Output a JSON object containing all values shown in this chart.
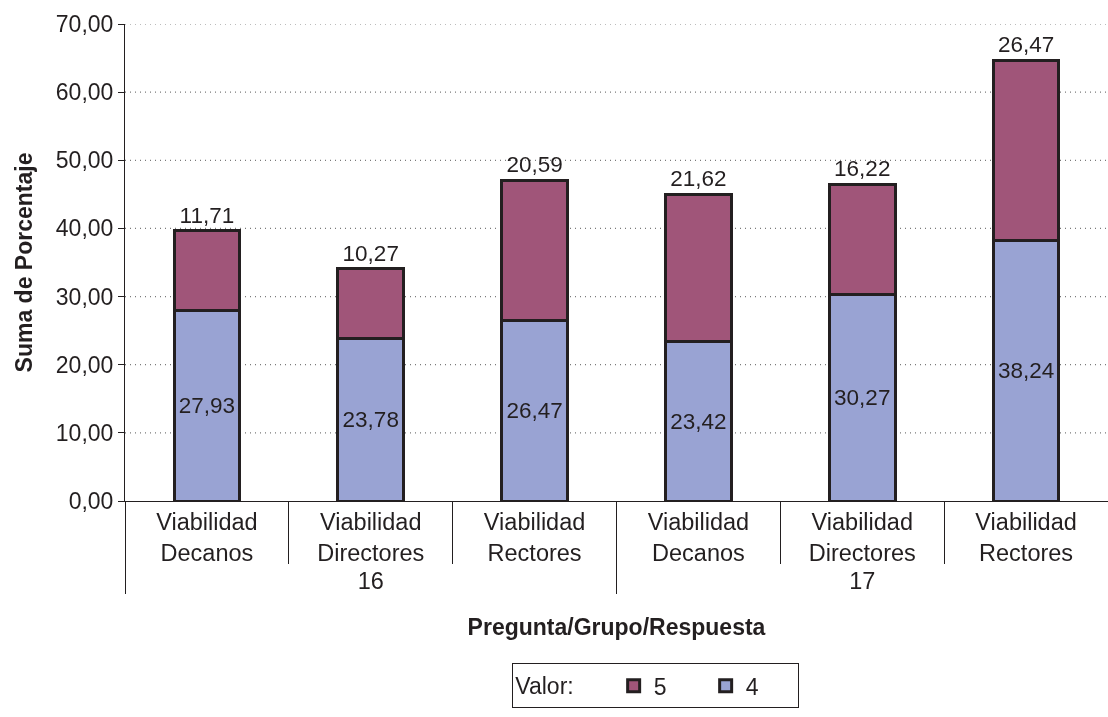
{
  "chart_data": {
    "type": "bar",
    "stacked": true,
    "categories": [
      "Viabilidad Decanos",
      "Viabilidad Directores",
      "Viabilidad Rectores",
      "Viabilidad Decanos",
      "Viabilidad Directores",
      "Viabilidad Rectores"
    ],
    "annotations": [
      "16",
      "17"
    ],
    "xlabel": "Pregunta/Grupo/Respuesta",
    "ylabel": "Suma de Porcentaje",
    "legend_title": "Valor:",
    "legend": "bottom",
    "grid": "y",
    "ylim": [
      0,
      70
    ],
    "yticks": [
      {
        "value": 0,
        "label": "0,00"
      },
      {
        "value": 10,
        "label": "10,00"
      },
      {
        "value": 20,
        "label": "20,00"
      },
      {
        "value": 30,
        "label": "30,00"
      },
      {
        "value": 40,
        "label": "40,00"
      },
      {
        "value": 50,
        "label": "50,00"
      },
      {
        "value": 60,
        "label": "60,00"
      },
      {
        "value": 70,
        "label": "70,00"
      }
    ],
    "series": [
      {
        "name": "4",
        "color": "#99a3d3",
        "values": [
          27.93,
          23.78,
          26.47,
          23.42,
          30.27,
          38.24
        ],
        "value_labels": [
          "27,93",
          "23,78",
          "26,47",
          "23,42",
          "30,27",
          "38,24"
        ]
      },
      {
        "name": "5",
        "color": "#a05579",
        "values": [
          11.71,
          10.27,
          20.59,
          21.62,
          16.22,
          26.47
        ],
        "value_labels": [
          "11,71",
          "10,27",
          "20,59",
          "21,62",
          "16,22",
          "26,47"
        ]
      }
    ]
  }
}
